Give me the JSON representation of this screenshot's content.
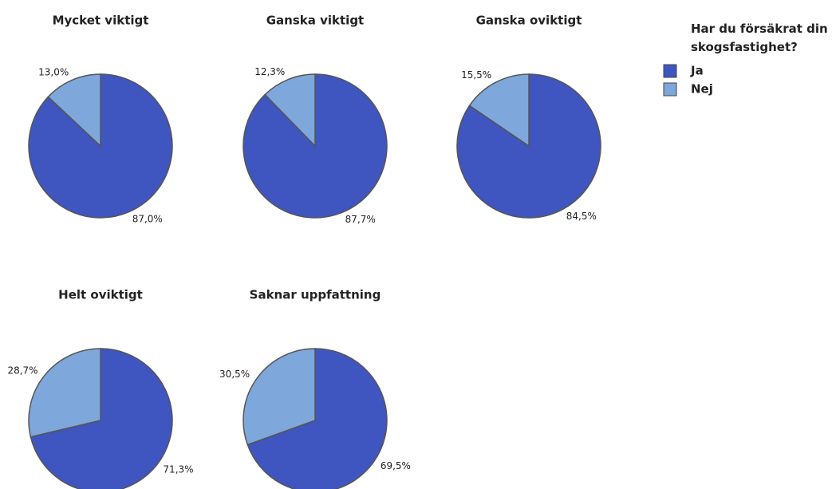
{
  "chart_data": [
    {
      "type": "pie",
      "title": "Mycket viktigt",
      "categories": [
        "Ja",
        "Nej"
      ],
      "values": [
        87.0,
        13.0
      ],
      "value_labels": [
        "87,0%",
        "13,0%"
      ],
      "colors": [
        "#3f55c0",
        "#7ea7db"
      ]
    },
    {
      "type": "pie",
      "title": "Ganska viktigt",
      "categories": [
        "Ja",
        "Nej"
      ],
      "values": [
        87.7,
        12.3
      ],
      "value_labels": [
        "87,7%",
        "12,3%"
      ],
      "colors": [
        "#3f55c0",
        "#7ea7db"
      ]
    },
    {
      "type": "pie",
      "title": "Ganska oviktigt",
      "categories": [
        "Ja",
        "Nej"
      ],
      "values": [
        84.5,
        15.5
      ],
      "value_labels": [
        "84,5%",
        "15,5%"
      ],
      "colors": [
        "#3f55c0",
        "#7ea7db"
      ]
    },
    {
      "type": "pie",
      "title": "Helt oviktigt",
      "categories": [
        "Ja",
        "Nej"
      ],
      "values": [
        71.3,
        28.7
      ],
      "value_labels": [
        "71,3%",
        "28,7%"
      ],
      "colors": [
        "#3f55c0",
        "#7ea7db"
      ]
    },
    {
      "type": "pie",
      "title": "Saknar uppfattning",
      "categories": [
        "Ja",
        "Nej"
      ],
      "values": [
        69.5,
        30.5
      ],
      "value_labels": [
        "69,5%",
        "30,5%"
      ],
      "colors": [
        "#3f55c0",
        "#7ea7db"
      ]
    }
  ],
  "legend": {
    "title": "Har du försäkrat din skogsfastighet?"
  }
}
